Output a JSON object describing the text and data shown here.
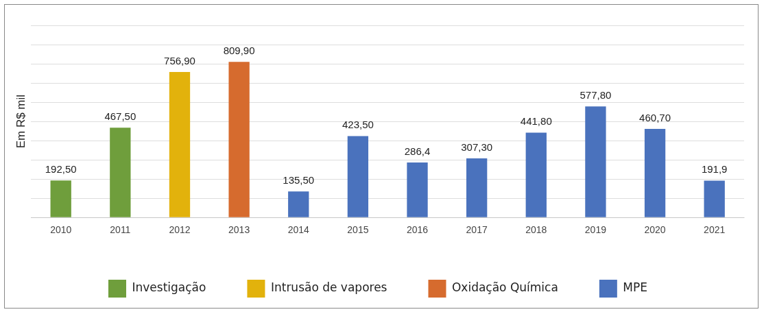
{
  "chart_data": {
    "type": "bar",
    "stacked": true,
    "ylabel": "Em R$ mil",
    "categories": [
      "2010",
      "2011",
      "2012",
      "2013",
      "2014",
      "2015",
      "2016",
      "2017",
      "2018",
      "2019",
      "2020",
      "2021"
    ],
    "series": [
      {
        "name": "Investigação",
        "color": "#6f9e3c",
        "values": [
          192.5,
          467.5,
          null,
          null,
          null,
          null,
          null,
          null,
          null,
          null,
          null,
          null
        ],
        "value_labels": [
          "192,50",
          "467,50",
          null,
          null,
          null,
          null,
          null,
          null,
          null,
          null,
          null,
          null
        ]
      },
      {
        "name": "Intrusão de vapores",
        "color": "#e2b20c",
        "values": [
          null,
          null,
          756.9,
          null,
          null,
          null,
          null,
          null,
          null,
          null,
          null,
          null
        ],
        "value_labels": [
          null,
          null,
          "756,90",
          null,
          null,
          null,
          null,
          null,
          null,
          null,
          null,
          null
        ]
      },
      {
        "name": "Oxidação Química",
        "color": "#d66b2e",
        "values": [
          null,
          null,
          null,
          809.9,
          null,
          null,
          null,
          null,
          null,
          null,
          null,
          null
        ],
        "value_labels": [
          null,
          null,
          null,
          "809,90",
          null,
          null,
          null,
          null,
          null,
          null,
          null,
          null
        ]
      },
      {
        "name": "MPE",
        "color": "#4a72bd",
        "values": [
          null,
          null,
          null,
          null,
          135.5,
          423.5,
          286.4,
          307.3,
          441.8,
          577.8,
          460.7,
          191.9
        ],
        "value_labels": [
          null,
          null,
          null,
          null,
          "135,50",
          "423,50",
          "286,4",
          "307,30",
          "441,80",
          "577,80",
          "460,70",
          "191,9"
        ]
      }
    ],
    "ylim": [
      0,
      1000
    ],
    "yticks": [
      {
        "value": 0,
        "label": null
      },
      {
        "value": 100,
        "label": null
      },
      {
        "value": 200,
        "label": null
      },
      {
        "value": 300,
        "label": null
      },
      {
        "value": 400,
        "label": null
      },
      {
        "value": 500,
        "label": null
      },
      {
        "value": 600,
        "label": null
      },
      {
        "value": 700,
        "label": null
      },
      {
        "value": 800,
        "label": null
      },
      {
        "value": 900,
        "label": null
      },
      {
        "value": 1000,
        "label": null
      }
    ],
    "tick_labels": "x",
    "grid": "y",
    "legend": "bottom"
  }
}
